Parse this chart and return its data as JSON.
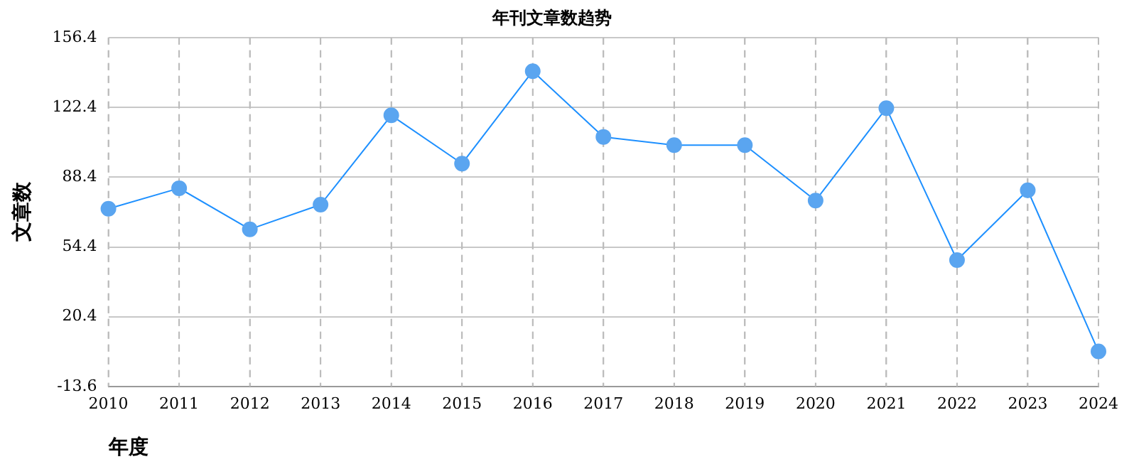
{
  "chart_data": {
    "type": "line",
    "title": "年刊文章数趋势",
    "xlabel": "年度",
    "ylabel": "文章数",
    "categories": [
      "2010",
      "2011",
      "2012",
      "2013",
      "2014",
      "2015",
      "2016",
      "2017",
      "2018",
      "2019",
      "2020",
      "2021",
      "2022",
      "2023",
      "2024"
    ],
    "series": [
      {
        "color": "#1e90ff",
        "values": [
          73,
          83,
          63,
          75,
          118.5,
          95,
          140,
          108,
          104,
          104,
          77,
          122,
          48,
          82,
          3.5
        ]
      }
    ],
    "ylim": [
      -13.6,
      156.4
    ],
    "yticks": [
      -13.6,
      20.4,
      54.4,
      88.4,
      122.4,
      156.4
    ],
    "grid": true,
    "marker": "circle",
    "line_style": "solid",
    "legend": false
  }
}
